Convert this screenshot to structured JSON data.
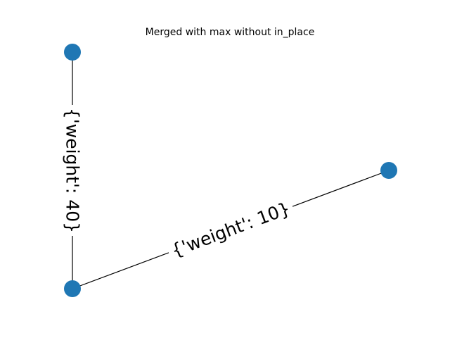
{
  "title": "Merged with max without in_place",
  "colors": {
    "node": "#1f77b4",
    "edge": "#000000",
    "label_background": "#ffffff"
  },
  "nodes": [
    {
      "id": "top-left"
    },
    {
      "id": "bottom-left"
    },
    {
      "id": "right"
    }
  ],
  "edges": [
    {
      "id": "vertical-edge",
      "source": "top-left",
      "target": "bottom-left",
      "label": "{'weight': 40}"
    },
    {
      "id": "diagonal-edge",
      "source": "bottom-left",
      "target": "right",
      "label": "{'weight': 10}"
    }
  ]
}
